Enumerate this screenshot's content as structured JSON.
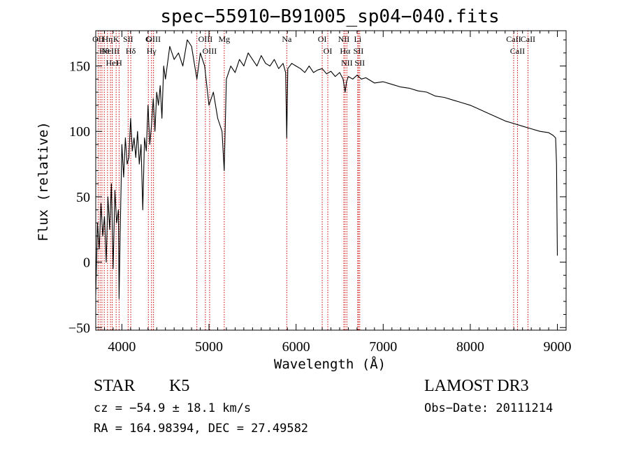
{
  "chart_data": {
    "type": "line",
    "title": "spec−55910−B91005_sp04−040.fits",
    "xlabel": "Wavelength (Å)",
    "ylabel": "Flux (relative)",
    "xlim": [
      3700,
      9100
    ],
    "ylim": [
      -52,
      177
    ],
    "xticks": [
      4000,
      5000,
      6000,
      7000,
      8000,
      9000
    ],
    "xtick_labels": [
      "4000",
      "5000",
      "6000",
      "7000",
      "8000",
      "9000"
    ],
    "yticks": [
      -50,
      0,
      50,
      100,
      150
    ],
    "ytick_labels": [
      "−50",
      "0",
      "50",
      "100",
      "150"
    ],
    "series": [
      {
        "name": "spectrum",
        "x": [
          3700,
          3720,
          3740,
          3760,
          3780,
          3800,
          3820,
          3840,
          3860,
          3880,
          3900,
          3920,
          3940,
          3960,
          3968,
          3980,
          4000,
          4020,
          4040,
          4060,
          4080,
          4100,
          4120,
          4140,
          4160,
          4180,
          4200,
          4220,
          4240,
          4260,
          4280,
          4300,
          4320,
          4340,
          4360,
          4380,
          4400,
          4420,
          4440,
          4460,
          4480,
          4500,
          4550,
          4600,
          4650,
          4700,
          4750,
          4800,
          4861,
          4900,
          4950,
          5000,
          5050,
          5100,
          5150,
          5175,
          5200,
          5250,
          5300,
          5350,
          5400,
          5450,
          5500,
          5550,
          5600,
          5650,
          5700,
          5750,
          5800,
          5850,
          5880,
          5893,
          5905,
          5950,
          6000,
          6050,
          6100,
          6150,
          6200,
          6250,
          6300,
          6350,
          6400,
          6450,
          6500,
          6540,
          6563,
          6580,
          6600,
          6650,
          6700,
          6750,
          6800,
          6900,
          7000,
          7100,
          7200,
          7300,
          7400,
          7500,
          7600,
          7700,
          7800,
          7900,
          8000,
          8100,
          8200,
          8300,
          8400,
          8500,
          8600,
          8700,
          8800,
          8900,
          8950,
          8980,
          8990,
          9000
        ],
        "y": [
          -25,
          30,
          10,
          45,
          20,
          35,
          0,
          50,
          25,
          60,
          -5,
          55,
          30,
          40,
          -28,
          20,
          90,
          65,
          95,
          75,
          80,
          110,
          85,
          95,
          80,
          100,
          75,
          90,
          40,
          95,
          85,
          120,
          90,
          105,
          125,
          100,
          130,
          120,
          135,
          110,
          150,
          140,
          165,
          155,
          160,
          150,
          170,
          165,
          140,
          160,
          150,
          120,
          130,
          110,
          100,
          70,
          140,
          150,
          145,
          155,
          150,
          160,
          155,
          150,
          158,
          152,
          150,
          155,
          148,
          152,
          145,
          95,
          148,
          152,
          150,
          148,
          145,
          150,
          145,
          147,
          148,
          144,
          146,
          142,
          145,
          140,
          130,
          138,
          142,
          140,
          143,
          140,
          141,
          137,
          138,
          136,
          134,
          133,
          131,
          130,
          127,
          126,
          124,
          122,
          120,
          117,
          114,
          111,
          108,
          106,
          104,
          102,
          100,
          99,
          97,
          95,
          75,
          5
        ]
      }
    ],
    "line_markers": [
      {
        "wavelength": 3728,
        "label": "OII"
      },
      {
        "wavelength": 3750,
        "label": ""
      },
      {
        "wavelength": 3771,
        "label": ""
      },
      {
        "wavelength": 3798,
        "label": "Hθ"
      },
      {
        "wavelength": 3835,
        "label": "Hη"
      },
      {
        "wavelength": 3869,
        "label": "NeIII"
      },
      {
        "wavelength": 3889,
        "label": "HeI"
      },
      {
        "wavelength": 3934,
        "label": "K"
      },
      {
        "wavelength": 3968,
        "label": "H"
      },
      {
        "wavelength": 4072,
        "label": "SII"
      },
      {
        "wavelength": 4102,
        "label": "Hδ"
      },
      {
        "wavelength": 4304,
        "label": "G"
      },
      {
        "wavelength": 4340,
        "label": "Hγ"
      },
      {
        "wavelength": 4363,
        "label": "OIII"
      },
      {
        "wavelength": 4861,
        "label": ""
      },
      {
        "wavelength": 4959,
        "label": "OIII"
      },
      {
        "wavelength": 5007,
        "label": "OIII"
      },
      {
        "wavelength": 5175,
        "label": "Mg"
      },
      {
        "wavelength": 5893,
        "label": "Na"
      },
      {
        "wavelength": 6300,
        "label": "OI"
      },
      {
        "wavelength": 6364,
        "label": "OI"
      },
      {
        "wavelength": 6548,
        "label": "NII"
      },
      {
        "wavelength": 6563,
        "label": "Hα"
      },
      {
        "wavelength": 6583,
        "label": "NII"
      },
      {
        "wavelength": 6708,
        "label": "Li"
      },
      {
        "wavelength": 6716,
        "label": "SII"
      },
      {
        "wavelength": 6731,
        "label": "SII"
      },
      {
        "wavelength": 8498,
        "label": "CaII"
      },
      {
        "wavelength": 8542,
        "label": "CaII"
      },
      {
        "wavelength": 8662,
        "label": "CaII"
      }
    ]
  },
  "info": {
    "class": "STAR",
    "subclass": "K5",
    "survey": "LAMOST DR3",
    "redshift": "cz = −54.9 ± 18.1 km/s",
    "obs_date": "Obs−Date: 20111214",
    "coords": "RA = 164.98394, DEC =  27.49582"
  },
  "colors": {
    "spectrum": "#000000",
    "line_marker": "#cc0000",
    "axes": "#000000"
  }
}
